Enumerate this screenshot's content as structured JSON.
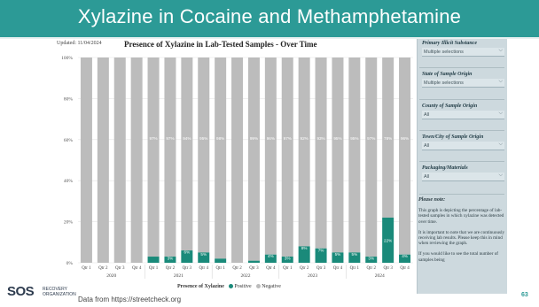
{
  "slide": {
    "title": "Xylazine in Cocaine and Methamphetamine",
    "source": "Data from https://streetcheck.org",
    "page_number": "63",
    "logo_text": "SOS",
    "logo_subtext_1": "RECOVERY",
    "logo_subtext_2": "ORGANIZATION"
  },
  "colors": {
    "header": "#2c9a96",
    "positive": "#1a8a7a",
    "negative": "#bcbcbc",
    "sidebar": "#cdd9de"
  },
  "dashboard": {
    "updated": "Updated: 11/04/2024",
    "chart_title": "Presence of Xylazine in Lab-Tested Samples - Over Time",
    "legend_title": "Presence of Xylazine",
    "legend_positive": "Positive",
    "legend_negative": "Negative"
  },
  "filters": [
    {
      "title": "Primary Illicit Substance",
      "value": "Multiple selections"
    },
    {
      "title": "State of Sample Origin",
      "value": "Multiple selections"
    },
    {
      "title": "County of Sample Origin",
      "value": "All"
    },
    {
      "title": "Town/City of Sample Origin",
      "value": "All"
    },
    {
      "title": "Packaging/Materials",
      "value": "All"
    }
  ],
  "note": {
    "title": "Please note:",
    "p1": "This graph is depicting the percentage of lab-tested samples in which xylazine was detected over time.",
    "p2": "It is important to note that we are continuously receiving lab results. Please keep this in mind when reviewing the graph.",
    "p3": "If you would like to see the total number of samples being"
  },
  "chart_data": {
    "type": "bar",
    "stacked": true,
    "categories": [
      "Qtr 1",
      "Qtr 2",
      "Qtr 3",
      "Qtr 4",
      "Qtr 1",
      "Qtr 2",
      "Qtr 3",
      "Qtr 4",
      "Qtr 1",
      "Qtr 2",
      "Qtr 3",
      "Qtr 4",
      "Qtr 1",
      "Qtr 2",
      "Qtr 3",
      "Qtr 4",
      "Qtr 1",
      "Qtr 2",
      "Qtr 3",
      "Qtr 4"
    ],
    "years": [
      {
        "label": "2020",
        "start": 0,
        "end": 3
      },
      {
        "label": "2021",
        "start": 4,
        "end": 7
      },
      {
        "label": "2022",
        "start": 8,
        "end": 11
      },
      {
        "label": "2023",
        "start": 12,
        "end": 15
      },
      {
        "label": "2024",
        "start": 16,
        "end": 19
      }
    ],
    "series": [
      {
        "name": "Positive",
        "values": [
          0,
          0,
          0,
          0,
          3,
          3,
          6,
          5,
          2,
          0,
          1,
          4,
          3,
          8,
          7,
          5,
          5,
          3,
          22,
          4
        ]
      },
      {
        "name": "Negative",
        "values": [
          100,
          100,
          100,
          100,
          97,
          97,
          94,
          95,
          98,
          100,
          99,
          96,
          97,
          92,
          93,
          95,
          95,
          97,
          78,
          96
        ]
      }
    ],
    "positive_labels": [
      "",
      "",
      "",
      "",
      "",
      "3%",
      "6%",
      "5%",
      "",
      "",
      "",
      "4%",
      "3%",
      "8%",
      "7%",
      "5%",
      "5%",
      "3%",
      "22%",
      "4%"
    ],
    "negative_labels": [
      "",
      "",
      "",
      "",
      "97%",
      "97%",
      "94%",
      "95%",
      "98%",
      "",
      "99%",
      "96%",
      "97%",
      "92%",
      "93%",
      "95%",
      "95%",
      "97%",
      "78%",
      "96%"
    ],
    "y_ticks": [
      "0%",
      "20%",
      "40%",
      "60%",
      "80%",
      "100%"
    ],
    "ylim": [
      0,
      100
    ]
  }
}
